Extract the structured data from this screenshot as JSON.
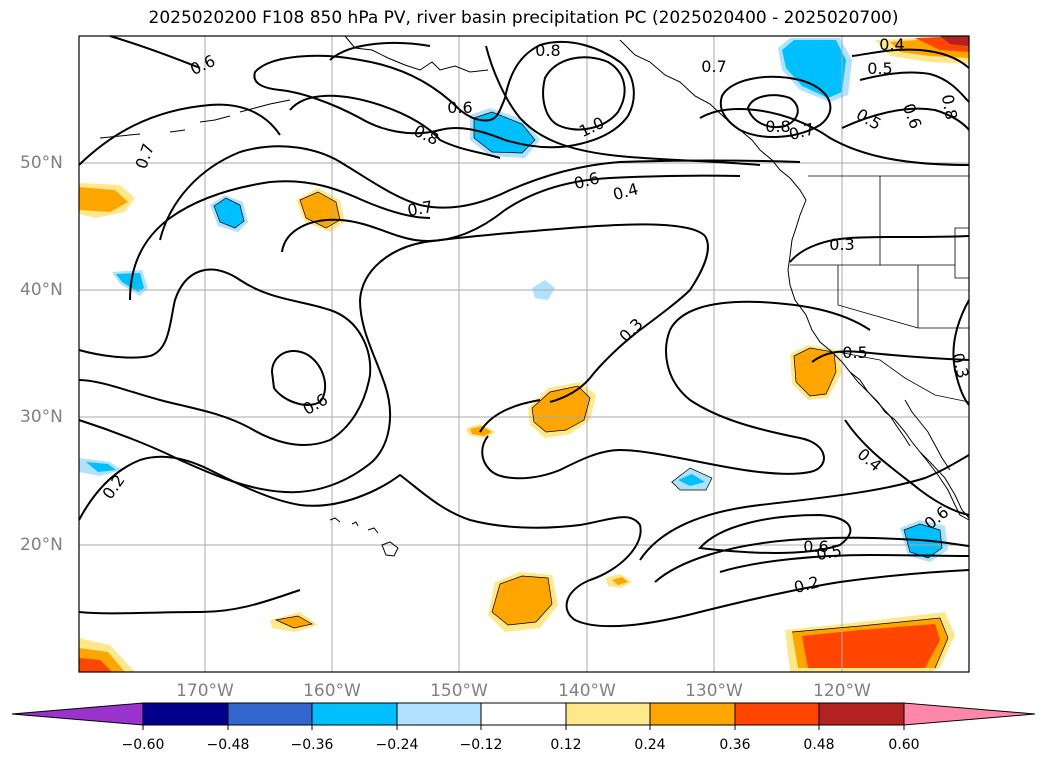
{
  "title": "2025020200 F108 850 hPa PV, river basin precipitation PC (2025020400 - 2025020700)",
  "map": {
    "lat_labels": [
      "50°N",
      "40°N",
      "30°N",
      "20°N"
    ],
    "lon_labels": [
      "170°W",
      "160°W",
      "150°W",
      "140°W",
      "130°W",
      "120°W"
    ],
    "contour_labels": [
      "0.6",
      "0.8",
      "0.6",
      "0.7",
      "0.7",
      "1.0",
      "0.8",
      "0.6",
      "0.4",
      "0.7",
      "0.4",
      "0.5",
      "0.5",
      "0.6",
      "0.8",
      "0.8",
      "0.7",
      "0.3",
      "0.3",
      "0.5",
      "0.6",
      "0.3",
      "0.4",
      "0.2",
      "0.6",
      "0.5",
      "0.2",
      "0.6"
    ]
  },
  "colorbar": {
    "ticks": [
      "−0.60",
      "−0.48",
      "−0.36",
      "−0.24",
      "−0.12",
      "0.12",
      "0.24",
      "0.36",
      "0.48",
      "0.60"
    ],
    "colors": [
      "#9933cc",
      "#00008b",
      "#3366cc",
      "#00bfff",
      "#b0e2ff",
      "#ffffff",
      "#ffe88c",
      "#ffa500",
      "#ff4500",
      "#b22222",
      "#ff88aa"
    ]
  }
}
